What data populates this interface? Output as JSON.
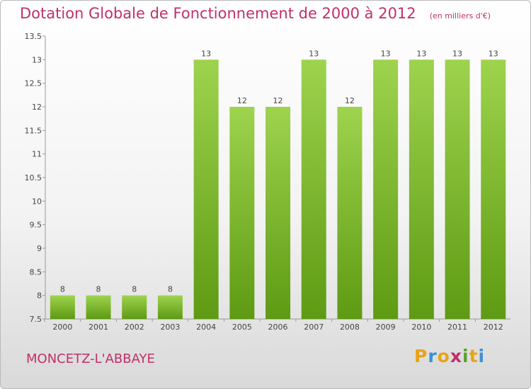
{
  "chart_data": {
    "type": "bar",
    "title": "Dotation Globale de Fonctionnement de 2000 à 2012",
    "subtitle": "(en milliers d'€)",
    "categories": [
      "2000",
      "2001",
      "2002",
      "2003",
      "2004",
      "2005",
      "2006",
      "2007",
      "2008",
      "2009",
      "2010",
      "2011",
      "2012"
    ],
    "values": [
      8,
      8,
      8,
      8,
      13,
      12,
      12,
      13,
      12,
      13,
      13,
      13,
      13
    ],
    "data_labels": [
      "8",
      "8",
      "8",
      "8",
      "13",
      "12",
      "12",
      "13",
      "12",
      "13",
      "13",
      "13",
      "13"
    ],
    "ylim": [
      7.5,
      13.5
    ],
    "yticks": [
      "7.5",
      "8",
      "8.5",
      "9",
      "9.5",
      "10",
      "10.5",
      "11",
      "11.5",
      "12",
      "12.5",
      "13",
      "13.5"
    ],
    "grid": false,
    "bar_color_top": "#9ed34e",
    "bar_color_bottom": "#5e9a13"
  },
  "footer": {
    "city": "MONCETZ-L'ABBAYE",
    "logo_letters": [
      "P",
      "r",
      "o",
      "x",
      "i",
      "t",
      "i"
    ],
    "logo_colors": [
      "#e8a317",
      "#3c8fd6",
      "#e8a317",
      "#c0306a",
      "#5aa02c",
      "#e8a317",
      "#3c8fd6"
    ]
  }
}
